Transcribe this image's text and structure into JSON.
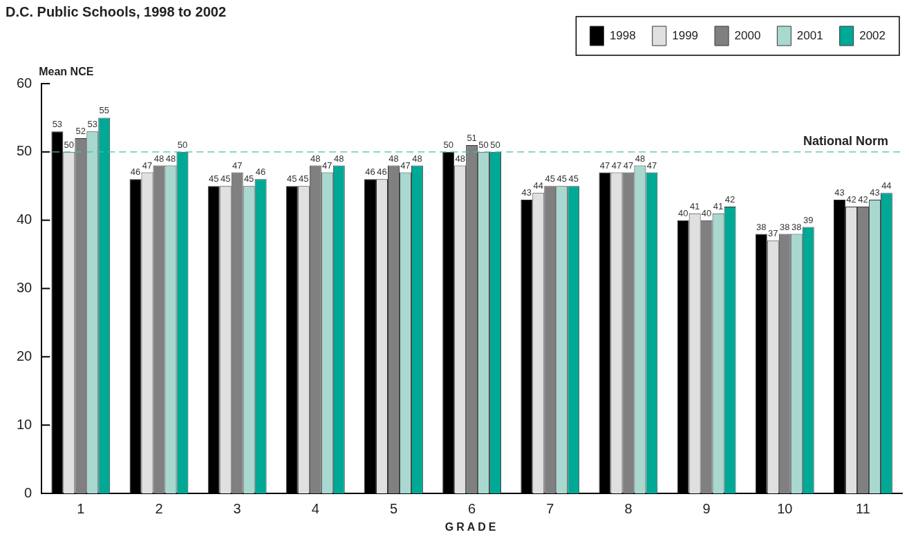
{
  "chart_data": {
    "type": "bar",
    "title": "D.C. Public Schools, 1998 to 2002",
    "xlabel": "GRADE",
    "ylabel": "Mean NCE",
    "categories": [
      "1",
      "2",
      "3",
      "4",
      "5",
      "6",
      "7",
      "8",
      "9",
      "10",
      "11"
    ],
    "series": [
      {
        "name": "1998",
        "color": "#000000",
        "values": [
          53,
          46,
          45,
          45,
          46,
          50,
          43,
          47,
          40,
          38,
          43
        ]
      },
      {
        "name": "1999",
        "color": "#e0e0e0",
        "values": [
          50,
          47,
          45,
          45,
          46,
          48,
          44,
          47,
          41,
          37,
          42
        ]
      },
      {
        "name": "2000",
        "color": "#808080",
        "values": [
          52,
          48,
          47,
          48,
          48,
          51,
          45,
          47,
          40,
          38,
          42
        ]
      },
      {
        "name": "2001",
        "color": "#a8d8d0",
        "values": [
          53,
          48,
          45,
          47,
          47,
          50,
          45,
          48,
          41,
          38,
          43
        ]
      },
      {
        "name": "2002",
        "color": "#00a896",
        "values": [
          55,
          50,
          46,
          48,
          48,
          50,
          45,
          47,
          42,
          39,
          44
        ]
      }
    ],
    "ylim": [
      0,
      60
    ],
    "yticks": [
      0,
      10,
      20,
      30,
      40,
      50,
      60
    ],
    "ref_lines": [
      {
        "axis": "y",
        "value": 50,
        "label": "National Norm",
        "color": "#40c0b0",
        "line_style": "dashed"
      }
    ],
    "data_labels": true,
    "grid": false,
    "legend": "top right"
  }
}
